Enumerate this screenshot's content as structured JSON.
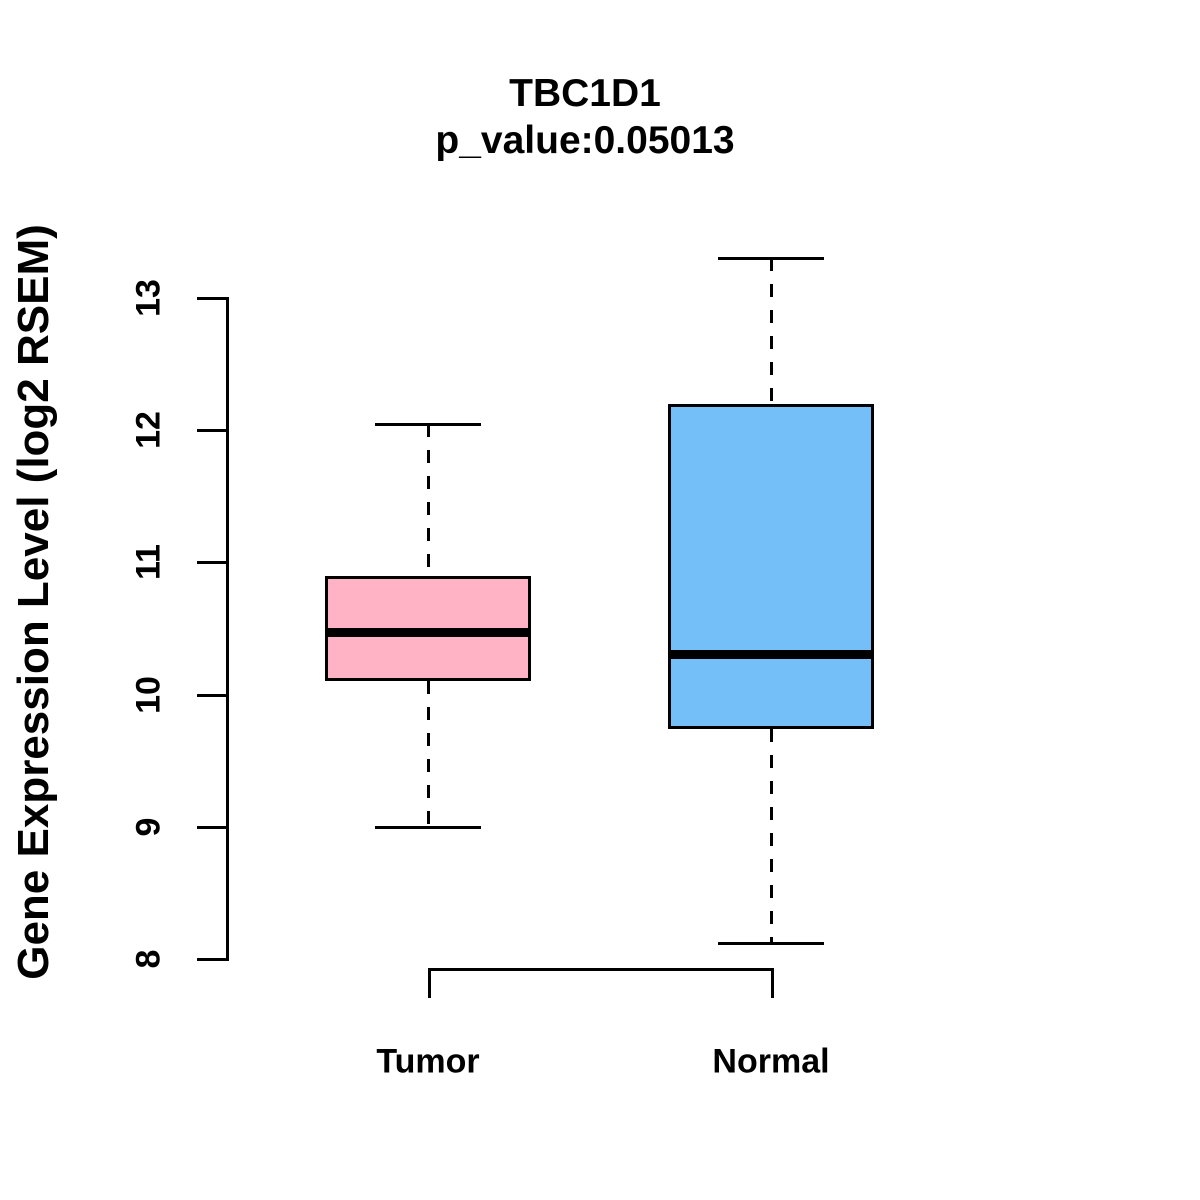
{
  "chart_data": {
    "type": "boxplot",
    "title": "TBC1D1",
    "subtitle": "p_value:0.05013",
    "p_value": 0.05013,
    "gene": "TBC1D1",
    "xlabel": "",
    "ylabel": "Gene Expression Level (log2 RSEM)",
    "ylim": [
      8,
      13.4
    ],
    "yticks": [
      "8",
      "9",
      "10",
      "11",
      "12",
      "13"
    ],
    "ytick_values": [
      8,
      9,
      10,
      11,
      12,
      13
    ],
    "grid": false,
    "legend": "none",
    "categories": [
      "Tumor",
      "Normal"
    ],
    "series": [
      {
        "name": "Tumor",
        "fill_color": "#FFB3C5",
        "whisker_low": 9.0,
        "q1": 10.1,
        "median": 10.47,
        "q3": 10.9,
        "whisker_high": 12.05
      },
      {
        "name": "Normal",
        "fill_color": "#74BFF8",
        "whisker_low": 8.12,
        "q1": 9.74,
        "median": 10.3,
        "q3": 12.2,
        "whisker_high": 13.3
      }
    ],
    "comparison_bracket": {
      "from": "Tumor",
      "to": "Normal"
    },
    "stroke_color": "#000000",
    "background_color": "#FFFFFF"
  }
}
